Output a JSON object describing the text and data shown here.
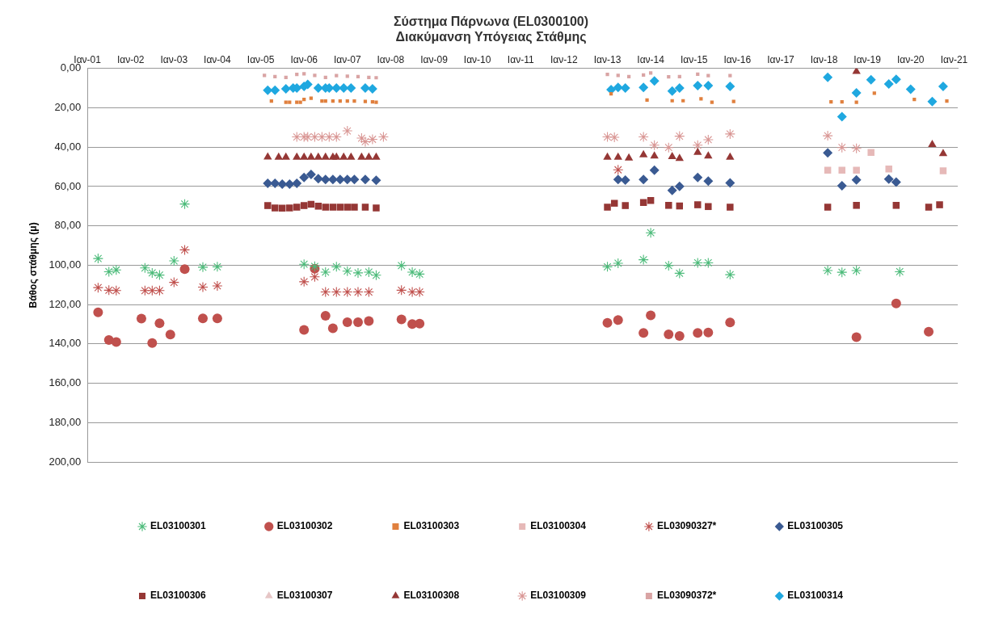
{
  "chart_data": {
    "type": "scatter",
    "title": "Σύστημα Πάρνωνα (EL0300100)",
    "subtitle": "Διακύμανση Υπόγειας Στάθμης",
    "ylabel": "Βάθος στάθμης (μ)",
    "xlim": [
      "2001-01",
      "2021-02"
    ],
    "xticks": [
      {
        "value": "2001-01",
        "label": "Ιαν-01"
      },
      {
        "value": "2002-01",
        "label": "Ιαν-02"
      },
      {
        "value": "2003-01",
        "label": "Ιαν-03"
      },
      {
        "value": "2004-01",
        "label": "Ιαν-04"
      },
      {
        "value": "2005-01",
        "label": "Ιαν-05"
      },
      {
        "value": "2006-01",
        "label": "Ιαν-06"
      },
      {
        "value": "2007-01",
        "label": "Ιαν-07"
      },
      {
        "value": "2008-01",
        "label": "Ιαν-08"
      },
      {
        "value": "2009-01",
        "label": "Ιαν-09"
      },
      {
        "value": "2010-01",
        "label": "Ιαν-10"
      },
      {
        "value": "2011-01",
        "label": "Ιαν-11"
      },
      {
        "value": "2012-01",
        "label": "Ιαν-12"
      },
      {
        "value": "2013-01",
        "label": "Ιαν-13"
      },
      {
        "value": "2014-01",
        "label": "Ιαν-14"
      },
      {
        "value": "2015-01",
        "label": "Ιαν-15"
      },
      {
        "value": "2016-01",
        "label": "Ιαν-16"
      },
      {
        "value": "2017-01",
        "label": "Ιαν-17"
      },
      {
        "value": "2018-01",
        "label": "Ιαν-18"
      },
      {
        "value": "2019-01",
        "label": "Ιαν-19"
      },
      {
        "value": "2020-01",
        "label": "Ιαν-20"
      },
      {
        "value": "2021-01",
        "label": "Ιαν-21"
      }
    ],
    "ylim": [
      200,
      0
    ],
    "yticks": [
      {
        "value": 0,
        "label": "0,00"
      },
      {
        "value": 20,
        "label": "20,00"
      },
      {
        "value": 40,
        "label": "40,00"
      },
      {
        "value": 60,
        "label": "60,00"
      },
      {
        "value": 80,
        "label": "80,00"
      },
      {
        "value": 100,
        "label": "100,00"
      },
      {
        "value": 120,
        "label": "120,00"
      },
      {
        "value": 140,
        "label": "140,00"
      },
      {
        "value": 160,
        "label": "160,00"
      },
      {
        "value": 180,
        "label": "180,00"
      },
      {
        "value": 200,
        "label": "200,00"
      }
    ],
    "grid": "y",
    "legend": "bottom",
    "series": [
      {
        "name": "EL03100301",
        "color": "#4cbb7a",
        "marker": "cross",
        "x": [
          "2001-04",
          "2001-07",
          "2001-09",
          "2002-05",
          "2002-07",
          "2002-09",
          "2003-01",
          "2003-04",
          "2003-09",
          "2004-01",
          "2006-01",
          "2006-04",
          "2006-07",
          "2006-10",
          "2007-01",
          "2007-04",
          "2007-07",
          "2007-09",
          "2008-04",
          "2008-07",
          "2008-09",
          "2013-01",
          "2013-04",
          "2013-11",
          "2014-01",
          "2014-06",
          "2014-09",
          "2015-02",
          "2015-05",
          "2015-11",
          "2018-02",
          "2018-06",
          "2018-10",
          "2019-10"
        ],
        "values": [
          96.6,
          103.3,
          102.4,
          101.4,
          103.9,
          105,
          97.8,
          68.9,
          101,
          100.8,
          99.5,
          100.6,
          103.5,
          100.8,
          103,
          103.9,
          103.5,
          105.1,
          100.2,
          103.5,
          104.5,
          100.8,
          99,
          97.2,
          83.5,
          100.2,
          104.1,
          98.8,
          98.8,
          104.8,
          102.7,
          103.6,
          102.7,
          103.3
        ]
      },
      {
        "name": "EL03100302",
        "color": "#c0504d",
        "marker": "circle",
        "x": [
          "2001-04",
          "2001-07",
          "2001-09",
          "2002-04",
          "2002-07",
          "2002-09",
          "2002-12",
          "2003-04",
          "2003-09",
          "2004-01",
          "2006-01",
          "2006-04",
          "2006-07",
          "2006-09",
          "2007-01",
          "2007-04",
          "2007-07",
          "2008-04",
          "2008-07",
          "2008-09",
          "2013-01",
          "2013-04",
          "2013-11",
          "2014-01",
          "2014-06",
          "2014-09",
          "2015-02",
          "2015-05",
          "2015-11",
          "2018-10",
          "2019-09",
          "2020-06"
        ],
        "values": [
          124,
          138,
          139,
          127.1,
          139.6,
          129.5,
          135.2,
          102,
          127,
          127,
          132.9,
          101.8,
          125.7,
          132.1,
          129,
          129,
          128.4,
          127.5,
          129.9,
          129.7,
          129.3,
          127.9,
          134.4,
          125.5,
          135.1,
          136,
          134.4,
          134.2,
          129.1,
          136.6,
          119.4,
          133.8
        ]
      },
      {
        "name": "EL03100303",
        "color": "#e0803e",
        "x": [
          "2005-04",
          "2005-08",
          "2005-09",
          "2005-11",
          "2005-12",
          "2006-01",
          "2006-03",
          "2006-06",
          "2006-07",
          "2006-09",
          "2006-11",
          "2007-01",
          "2007-03",
          "2007-06",
          "2007-08",
          "2007-09",
          "2013-02",
          "2013-12",
          "2014-07",
          "2014-10",
          "2015-03",
          "2015-06",
          "2015-12",
          "2018-03",
          "2018-06",
          "2018-10",
          "2019-03",
          "2020-02",
          "2020-11"
        ],
        "values": [
          16.6,
          17.2,
          17.2,
          17.2,
          17.2,
          15.7,
          15.1,
          16.6,
          16.6,
          16.6,
          16.6,
          16.6,
          16.6,
          16.8,
          17,
          17.2,
          12.9,
          16,
          16.4,
          16.4,
          15.4,
          17.2,
          16.8,
          17,
          17,
          17.2,
          12.6,
          15.7,
          16.6
        ]
      },
      {
        "name": "EL03100304",
        "color": "#e6b9b8",
        "marker": "square",
        "x": [
          "2018-02",
          "2018-06",
          "2018-10",
          "2019-02",
          "2019-07",
          "2020-10"
        ],
        "values": [
          51.7,
          51.7,
          51.7,
          42.7,
          51.1,
          52
        ]
      },
      {
        "name": "EL03090327*",
        "color": "#c0504d",
        "marker": "cross",
        "x": [
          "2001-04",
          "2001-07",
          "2001-09",
          "2002-05",
          "2002-07",
          "2002-09",
          "2003-01",
          "2003-04",
          "2003-09",
          "2004-01",
          "2006-01",
          "2006-04",
          "2006-07",
          "2006-10",
          "2007-01",
          "2007-04",
          "2007-07",
          "2008-04",
          "2008-07",
          "2008-09",
          "2013-04"
        ],
        "values": [
          111.4,
          112.7,
          112.9,
          112.9,
          112.9,
          112.9,
          108.7,
          92.2,
          111.1,
          110.5,
          108.4,
          105.9,
          113.6,
          113.6,
          113.6,
          113.6,
          113.6,
          112.7,
          113.6,
          113.6,
          51.5
        ]
      },
      {
        "name": "EL03100305",
        "color": "#3a5a92",
        "marker": "diamond",
        "x": [
          "2005-03",
          "2005-05",
          "2005-07",
          "2005-09",
          "2005-11",
          "2006-01",
          "2006-03",
          "2006-05",
          "2006-07",
          "2006-09",
          "2006-11",
          "2007-01",
          "2007-03",
          "2007-06",
          "2007-09",
          "2013-04",
          "2013-06",
          "2013-11",
          "2014-02",
          "2014-07",
          "2014-09",
          "2015-02",
          "2015-05",
          "2015-11",
          "2018-02",
          "2018-06",
          "2018-10",
          "2019-07",
          "2019-09"
        ],
        "values": [
          58.4,
          58.4,
          58.8,
          58.8,
          58.4,
          55.4,
          53.9,
          56,
          56.4,
          56.4,
          56.4,
          56.4,
          56.4,
          56.4,
          56.8,
          56.4,
          56.7,
          56.4,
          51.7,
          62,
          59.9,
          55.4,
          57.2,
          58.2,
          42.9,
          59.6,
          56.6,
          56.2,
          57.8
        ]
      },
      {
        "name": "EL03100306",
        "color": "#953735",
        "marker": "square",
        "x": [
          "2005-03",
          "2005-05",
          "2005-07",
          "2005-09",
          "2005-11",
          "2006-01",
          "2006-03",
          "2006-05",
          "2006-07",
          "2006-09",
          "2006-11",
          "2007-01",
          "2007-03",
          "2007-06",
          "2007-09",
          "2013-01",
          "2013-03",
          "2013-06",
          "2013-11",
          "2014-01",
          "2014-06",
          "2014-09",
          "2015-02",
          "2015-05",
          "2015-11",
          "2018-02",
          "2018-10",
          "2019-09",
          "2020-06",
          "2020-09"
        ],
        "values": [
          69.7,
          70.9,
          71,
          70.9,
          70.5,
          69.7,
          69,
          70,
          70.5,
          70.5,
          70.5,
          70.5,
          70.5,
          70.5,
          70.9,
          70.5,
          68.5,
          69.7,
          68.1,
          67.1,
          69.6,
          69.9,
          69.3,
          70.2,
          70.5,
          70.5,
          69.6,
          69.6,
          70.5,
          69.3
        ]
      },
      {
        "name": "EL03100307",
        "color": "#e6c6c6",
        "marker": "triangle"
      },
      {
        "name": "EL03100308",
        "color": "#953735",
        "marker": "triangle",
        "x": [
          "2005-03",
          "2005-06",
          "2005-08",
          "2005-11",
          "2006-01",
          "2006-03",
          "2006-05",
          "2006-07",
          "2006-09",
          "2006-10",
          "2006-12",
          "2007-02",
          "2007-05",
          "2007-07",
          "2007-09",
          "2013-01",
          "2013-04",
          "2013-07",
          "2013-11",
          "2014-02",
          "2014-07",
          "2014-09",
          "2015-02",
          "2015-05",
          "2015-11",
          "2018-10",
          "2020-07",
          "2020-10"
        ],
        "values": [
          45,
          45.1,
          45.1,
          45.1,
          45.1,
          45.1,
          45.1,
          45.1,
          45.1,
          45.1,
          45.1,
          45.1,
          45.1,
          45.1,
          45.1,
          45.1,
          45.1,
          45.5,
          43.9,
          44.5,
          44.8,
          45.7,
          42.7,
          44.5,
          45.1,
          1.5,
          38.7,
          43.3
        ]
      },
      {
        "name": "EL03100309",
        "color": "#d99694",
        "marker": "cross",
        "x": [
          "2005-11",
          "2006-01",
          "2006-02",
          "2006-04",
          "2006-06",
          "2006-08",
          "2006-10",
          "2007-01",
          "2007-05",
          "2007-06",
          "2007-08",
          "2007-11",
          "2013-01",
          "2013-03",
          "2013-11",
          "2014-02",
          "2014-06",
          "2014-09",
          "2015-02",
          "2015-05",
          "2015-11",
          "2018-02",
          "2018-06",
          "2018-10"
        ],
        "values": [
          34.8,
          34.8,
          34.8,
          34.8,
          34.8,
          34.8,
          34.8,
          31.7,
          35.4,
          37.2,
          36,
          34.8,
          34.8,
          35,
          34.8,
          39,
          40.2,
          34.4,
          39,
          36.2,
          33.3,
          34.2,
          40.2,
          40.6
        ]
      },
      {
        "name": "EL03090372*",
        "color": "#d9a4a4",
        "x": [
          "2005-02",
          "2005-05",
          "2005-08",
          "2005-11",
          "2006-01",
          "2006-04",
          "2006-07",
          "2006-10",
          "2007-01",
          "2007-04",
          "2007-07",
          "2007-09",
          "2013-01",
          "2013-04",
          "2013-07",
          "2013-11",
          "2014-01",
          "2014-06",
          "2014-09",
          "2015-02",
          "2015-05",
          "2015-11"
        ],
        "values": [
          3.5,
          4.1,
          4.5,
          3,
          2.7,
          3.5,
          4.5,
          3.6,
          3.9,
          4.1,
          4.5,
          4.7,
          3,
          3.5,
          4.1,
          3.3,
          2.3,
          4.2,
          4.1,
          2.9,
          3.6,
          3.6
        ]
      },
      {
        "name": "EL03100314",
        "color": "#1fa8e0",
        "marker": "diamond",
        "x": [
          "2005-03",
          "2005-05",
          "2005-08",
          "2005-10",
          "2005-11",
          "2006-01",
          "2006-02",
          "2006-05",
          "2006-07",
          "2006-08",
          "2006-10",
          "2006-12",
          "2007-02",
          "2007-06",
          "2007-08",
          "2013-02",
          "2013-04",
          "2013-06",
          "2013-11",
          "2014-02",
          "2014-07",
          "2014-09",
          "2015-02",
          "2015-05",
          "2015-11",
          "2018-02",
          "2018-06",
          "2018-10",
          "2019-02",
          "2019-07",
          "2019-09",
          "2020-01",
          "2020-07",
          "2020-10"
        ],
        "values": [
          11.1,
          11.1,
          10.3,
          9.9,
          9.9,
          9.1,
          8.1,
          9.9,
          9.9,
          9.9,
          9.9,
          9.9,
          9.9,
          9.9,
          10.3,
          10.8,
          9.6,
          9.9,
          9.6,
          6.3,
          11.5,
          9.9,
          8.7,
          8.7,
          9.1,
          4.5,
          24.5,
          12.4,
          5.7,
          7.9,
          5.5,
          10.5,
          16.8,
          9.1
        ]
      }
    ]
  }
}
